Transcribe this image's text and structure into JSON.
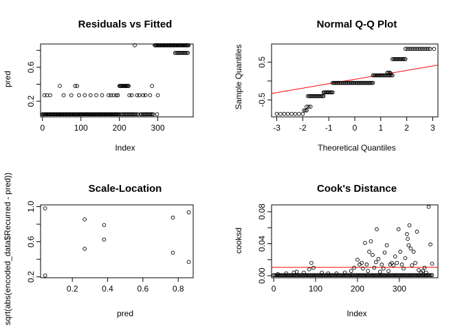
{
  "chart_data": [
    {
      "type": "scatter",
      "title": "Residuals vs Fitted",
      "xlabel": "Index",
      "ylabel": "pred",
      "xlim": [
        -5,
        392
      ],
      "ylim": [
        0.015,
        0.875
      ],
      "xticks": [
        0,
        100,
        200,
        300
      ],
      "yticks": [
        0.2,
        0.6
      ],
      "yticks_extra": [
        0.2,
        0.4,
        0.6,
        0.8
      ],
      "point_color": "#000000",
      "levels": [
        0.046,
        0.27,
        0.38,
        0.77,
        0.86
      ],
      "runs": [
        {
          "level": 0.046,
          "from": 0,
          "to": 200,
          "every": 2
        },
        {
          "level": 0.046,
          "from": 208,
          "to": 245,
          "every": 3
        },
        {
          "level": 0.046,
          "from": 255,
          "to": 290,
          "every": 3
        },
        {
          "level": 0.38,
          "from": 200,
          "to": 225,
          "every": 2
        },
        {
          "level": 0.86,
          "from": 292,
          "to": 380,
          "every": 2
        },
        {
          "level": 0.77,
          "from": 345,
          "to": 378,
          "every": 3
        }
      ],
      "sparse": [
        [
          5,
          0.27
        ],
        [
          12,
          0.27
        ],
        [
          20,
          0.27
        ],
        [
          45,
          0.38
        ],
        [
          55,
          0.27
        ],
        [
          75,
          0.27
        ],
        [
          85,
          0.38
        ],
        [
          90,
          0.38
        ],
        [
          95,
          0.27
        ],
        [
          110,
          0.27
        ],
        [
          125,
          0.27
        ],
        [
          140,
          0.27
        ],
        [
          155,
          0.27
        ],
        [
          172,
          0.27
        ],
        [
          178,
          0.27
        ],
        [
          185,
          0.27
        ],
        [
          192,
          0.27
        ],
        [
          196,
          0.27
        ],
        [
          226,
          0.27
        ],
        [
          232,
          0.27
        ],
        [
          240,
          0.86
        ],
        [
          246,
          0.27
        ],
        [
          252,
          0.27
        ],
        [
          262,
          0.27
        ],
        [
          268,
          0.27
        ],
        [
          280,
          0.27
        ],
        [
          285,
          0.38
        ],
        [
          300,
          0.27
        ],
        [
          100,
          0.046
        ],
        [
          115,
          0.046
        ],
        [
          160,
          0.046
        ],
        [
          205,
          0.046
        ],
        [
          248,
          0.046
        ],
        [
          298,
          0.046
        ]
      ]
    },
    {
      "type": "scatter",
      "title": "Normal Q-Q Plot",
      "xlabel": "Theoretical Quantiles",
      "ylabel": "Sample Quantiles",
      "xlim": [
        -3.2,
        3.2
      ],
      "ylim": [
        -0.95,
        0.98
      ],
      "xticks": [
        -3,
        -2,
        -1,
        0,
        1,
        2,
        3
      ],
      "yticks": [
        -0.5,
        0.5
      ],
      "yticks_extra": [
        -0.5,
        0,
        0.5
      ],
      "point_color": "#000000",
      "line_color": "#ff0000",
      "qq_line": [
        [
          -3.2,
          -0.33
        ],
        [
          3.2,
          0.42
        ]
      ],
      "steps": [
        {
          "from": -3.0,
          "to": -2.0,
          "y": -0.87,
          "n": 8
        },
        {
          "from": -1.95,
          "to": -1.85,
          "y": -0.78,
          "n": 3
        },
        {
          "from": -1.85,
          "to": -1.7,
          "y": -0.68,
          "n": 3
        },
        {
          "from": -1.8,
          "to": -1.2,
          "y": -0.4,
          "n": 16
        },
        {
          "from": -1.2,
          "to": -0.85,
          "y": -0.3,
          "n": 10
        },
        {
          "from": -0.85,
          "to": 0.7,
          "y": -0.05,
          "n": 40
        },
        {
          "from": 0.7,
          "to": 1.45,
          "y": 0.15,
          "n": 18
        },
        {
          "from": 1.25,
          "to": 1.35,
          "y": 0.22,
          "n": 3
        },
        {
          "from": 1.45,
          "to": 1.95,
          "y": 0.58,
          "n": 12
        },
        {
          "from": 1.95,
          "to": 2.9,
          "y": 0.85,
          "n": 14
        }
      ],
      "extra": [
        [
          3.05,
          0.85
        ],
        [
          1.38,
          0.2
        ]
      ]
    },
    {
      "type": "scatter",
      "title": "Scale-Location",
      "xlabel": "pred",
      "ylabel": "sqrt(abs(encoded_data$Recurred - pred))",
      "xlim": [
        0.02,
        0.885
      ],
      "ylim": [
        0.19,
        1.02
      ],
      "xticks": [
        0.2,
        0.4,
        0.6,
        0.8
      ],
      "yticks": [
        0.2,
        0.6,
        1.0
      ],
      "yticks_extra": [
        0.2,
        0.4,
        0.6,
        0.8,
        1.0
      ],
      "point_color": "#000000",
      "points": [
        [
          0.046,
          0.98
        ],
        [
          0.046,
          0.215
        ],
        [
          0.27,
          0.855
        ],
        [
          0.27,
          0.52
        ],
        [
          0.38,
          0.79
        ],
        [
          0.38,
          0.625
        ],
        [
          0.77,
          0.875
        ],
        [
          0.77,
          0.475
        ],
        [
          0.86,
          0.935
        ],
        [
          0.86,
          0.37
        ]
      ]
    },
    {
      "type": "scatter",
      "title": "Cook's Distance",
      "xlabel": "Index",
      "ylabel": "cooksd",
      "xlim": [
        -5,
        392
      ],
      "ylim": [
        -0.0025,
        0.0885
      ],
      "xticks": [
        0,
        100,
        200,
        300
      ],
      "yticks": [
        0.0,
        0.04,
        0.08
      ],
      "yticks_extra": [
        0.0,
        0.02,
        0.04,
        0.06,
        0.08
      ],
      "point_color": "#000000",
      "line_color": "#ff0000",
      "hline": 0.0105,
      "points": [
        [
          10,
          0.002
        ],
        [
          30,
          0.003
        ],
        [
          48,
          0.004
        ],
        [
          55,
          0.005
        ],
        [
          72,
          0.004
        ],
        [
          85,
          0.008
        ],
        [
          90,
          0.016
        ],
        [
          95,
          0.01
        ],
        [
          115,
          0.004
        ],
        [
          130,
          0.003
        ],
        [
          150,
          0.003
        ],
        [
          170,
          0.004
        ],
        [
          185,
          0.006
        ],
        [
          192,
          0.01
        ],
        [
          200,
          0.02
        ],
        [
          205,
          0.014
        ],
        [
          210,
          0.016
        ],
        [
          213,
          0.009
        ],
        [
          218,
          0.041
        ],
        [
          222,
          0.014
        ],
        [
          225,
          0.006
        ],
        [
          228,
          0.03
        ],
        [
          232,
          0.043
        ],
        [
          236,
          0.026
        ],
        [
          240,
          0.01
        ],
        [
          244,
          0.017
        ],
        [
          246,
          0.058
        ],
        [
          250,
          0.021
        ],
        [
          254,
          0.005
        ],
        [
          258,
          0.014
        ],
        [
          262,
          0.009
        ],
        [
          265,
          0.029
        ],
        [
          270,
          0.038
        ],
        [
          274,
          0.006
        ],
        [
          278,
          0.014
        ],
        [
          282,
          0.016
        ],
        [
          286,
          0.013
        ],
        [
          290,
          0.024
        ],
        [
          294,
          0.016
        ],
        [
          298,
          0.058
        ],
        [
          302,
          0.03
        ],
        [
          306,
          0.014
        ],
        [
          310,
          0.009
        ],
        [
          314,
          0.022
        ],
        [
          318,
          0.052
        ],
        [
          320,
          0.046
        ],
        [
          322,
          0.038
        ],
        [
          324,
          0.063
        ],
        [
          327,
          0.034
        ],
        [
          330,
          0.013
        ],
        [
          334,
          0.03
        ],
        [
          338,
          0.016
        ],
        [
          342,
          0.055
        ],
        [
          346,
          0.007
        ],
        [
          352,
          0.004
        ],
        [
          356,
          0.006
        ],
        [
          360,
          0.01
        ],
        [
          364,
          0.004
        ],
        [
          370,
          0.086
        ],
        [
          374,
          0.039
        ],
        [
          378,
          0.015
        ]
      ],
      "baseline": {
        "from": 0,
        "to": 380,
        "every": 3,
        "y": 0.0007
      }
    }
  ]
}
